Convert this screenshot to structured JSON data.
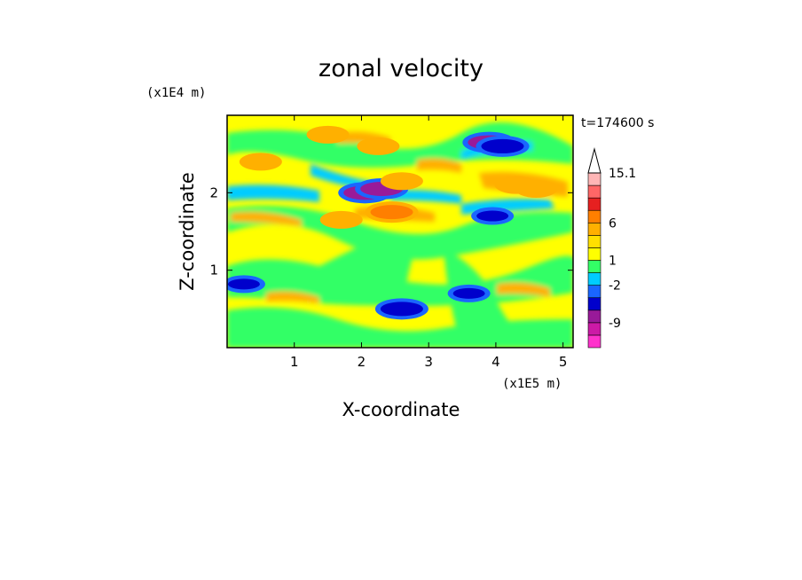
{
  "chart_data": {
    "type": "heatmap",
    "title": "zonal velocity",
    "xlabel": "X-coordinate",
    "ylabel": "Z-coordinate",
    "x_unit": "(x1E5 m)",
    "y_unit": "(x1E4 m)",
    "time_label": "t=174600 s",
    "xlim": [
      0,
      5.15
    ],
    "ylim": [
      0,
      3.0
    ],
    "x_ticks": [
      "1",
      "2",
      "3",
      "4",
      "5"
    ],
    "y_ticks": [
      "1",
      "2"
    ],
    "colorbar": {
      "labels": [
        "15.1",
        "6",
        "1",
        "-2",
        "-9"
      ],
      "levels": [
        -15,
        -12,
        -9,
        -6,
        -3,
        -2,
        -1,
        1,
        2,
        3,
        6,
        9,
        12,
        15.1
      ],
      "colors": [
        "#ff33cc",
        "#cc1aa6",
        "#991a99",
        "#0000cc",
        "#1a66ff",
        "#00ccff",
        "#33ff66",
        "#ffff00",
        "#ffe000",
        "#ffb000",
        "#ff7f00",
        "#e62020",
        "#ff6666",
        "#ffb6b6"
      ]
    },
    "features": [
      {
        "x": 2.05,
        "z": 2.0,
        "value": -8
      },
      {
        "x": 2.3,
        "z": 2.05,
        "value": -7
      },
      {
        "x": 3.9,
        "z": 2.65,
        "value": -7
      },
      {
        "x": 4.1,
        "z": 2.6,
        "value": -6
      },
      {
        "x": 3.95,
        "z": 1.7,
        "value": -4
      },
      {
        "x": 0.25,
        "z": 0.82,
        "value": -5
      },
      {
        "x": 2.6,
        "z": 0.5,
        "value": -6
      },
      {
        "x": 3.6,
        "z": 0.7,
        "value": -5
      },
      {
        "x": 2.45,
        "z": 1.75,
        "value": 6
      },
      {
        "x": 4.3,
        "z": 2.1,
        "value": 5
      },
      {
        "x": 4.6,
        "z": 2.05,
        "value": 4
      },
      {
        "x": 1.5,
        "z": 2.75,
        "value": 3
      },
      {
        "x": 2.25,
        "z": 2.6,
        "value": 3
      },
      {
        "x": 2.6,
        "z": 2.15,
        "value": 3
      },
      {
        "x": 1.7,
        "z": 1.65,
        "value": 3
      },
      {
        "x": 0.5,
        "z": 2.4,
        "value": 3
      }
    ]
  }
}
